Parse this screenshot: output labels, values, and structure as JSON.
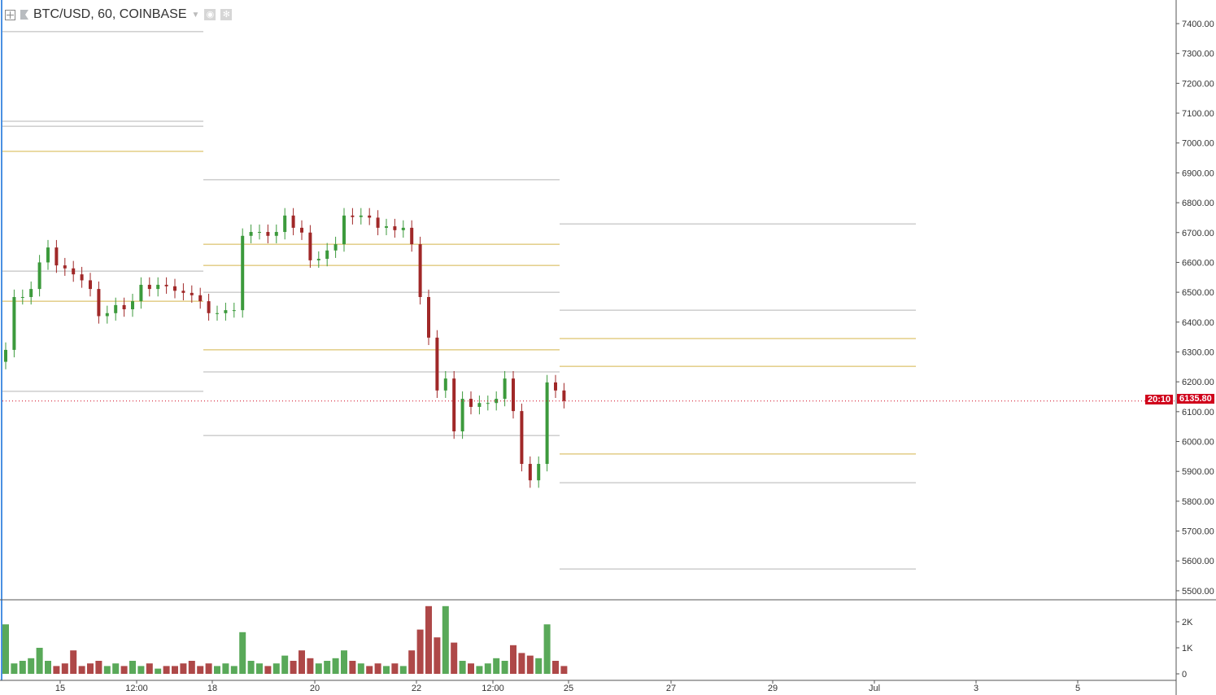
{
  "header": {
    "title": "BTC/USD, 60, COINBASE"
  },
  "colors": {
    "up": "#3c9a3c",
    "down": "#a02828",
    "pivot_gold": "#d4b44a",
    "pivot_gray": "#b4b4b4",
    "last_price": "#d0021b"
  },
  "last_price": {
    "value": "6135.80",
    "countdown": "20:10"
  },
  "chart_data": {
    "type": "candlestick",
    "symbol": "BTC/USD",
    "interval": "60",
    "exchange": "COINBASE",
    "ylim": [
      5450,
      7450
    ],
    "y_ticks": [
      "7400.00",
      "7300.00",
      "7200.00",
      "7100.00",
      "7000.00",
      "6900.00",
      "6800.00",
      "6700.00",
      "6600.00",
      "6500.00",
      "6400.00",
      "6300.00",
      "6200.00",
      "6100.00",
      "6000.00",
      "5900.00",
      "5800.00",
      "5700.00",
      "5600.00",
      "5500.00"
    ],
    "x_ticks": [
      "15",
      "12:00",
      "18",
      "20",
      "22",
      "12:00",
      "25",
      "27",
      "29",
      "Jul",
      "3",
      "5"
    ],
    "closes": [
      6307,
      6484,
      6484,
      6511,
      6600,
      6650,
      6590,
      6580,
      6560,
      6540,
      6511,
      6420,
      6430,
      6457,
      6443,
      6470,
      6525,
      6511,
      6525,
      6520,
      6505,
      6498,
      6490,
      6470,
      6430,
      6430,
      6440,
      6440,
      6689,
      6702,
      6702,
      6689,
      6702,
      6757,
      6716,
      6700,
      6607,
      6612,
      6640,
      6661,
      6757,
      6752,
      6757,
      6750,
      6716,
      6721,
      6708,
      6716,
      6661,
      6484,
      6348,
      6171,
      6211,
      6034,
      6143,
      6116,
      6129,
      6129,
      6143,
      6211,
      6102,
      5925,
      5870,
      5925,
      6198,
      6171,
      6135.8
    ],
    "volume": {
      "ticks": [
        "2K",
        "1K",
        "0"
      ],
      "values_k": [
        1.9,
        0.4,
        0.5,
        0.6,
        1.0,
        0.5,
        0.3,
        0.4,
        0.9,
        0.3,
        0.4,
        0.5,
        0.3,
        0.4,
        0.3,
        0.5,
        0.3,
        0.4,
        0.2,
        0.3,
        0.3,
        0.4,
        0.5,
        0.3,
        0.4,
        0.3,
        0.4,
        0.3,
        1.6,
        0.5,
        0.4,
        0.3,
        0.4,
        0.7,
        0.5,
        0.9,
        0.6,
        0.4,
        0.5,
        0.6,
        0.9,
        0.5,
        0.4,
        0.3,
        0.4,
        0.3,
        0.4,
        0.3,
        0.9,
        1.7,
        2.6,
        1.4,
        2.6,
        1.2,
        0.5,
        0.4,
        0.3,
        0.4,
        0.6,
        0.5,
        1.1,
        0.8,
        0.7,
        0.6,
        1.9,
        0.5,
        0.3
      ]
    },
    "pivot_levels": [
      {
        "period": 1,
        "levels": [
          [
            7373,
            "gray"
          ],
          [
            7073,
            "gray"
          ],
          [
            7056,
            "gray"
          ],
          [
            6972,
            "gold"
          ],
          [
            6571,
            "gray"
          ],
          [
            6470,
            "gold"
          ],
          [
            6168,
            "gray"
          ]
        ]
      },
      {
        "period": 2,
        "levels": [
          [
            6877,
            "gray"
          ],
          [
            6661,
            "gold"
          ],
          [
            6590,
            "gold"
          ],
          [
            6500,
            "gray"
          ],
          [
            6307,
            "gold"
          ],
          [
            6233,
            "gray"
          ],
          [
            6020,
            "gray"
          ]
        ]
      },
      {
        "period": 3,
        "levels": [
          [
            6729,
            "gray"
          ],
          [
            6440,
            "gray"
          ],
          [
            6345,
            "gold"
          ],
          [
            6252,
            "gold"
          ],
          [
            5958,
            "gold"
          ],
          [
            5862,
            "gray"
          ],
          [
            5573,
            "gray"
          ]
        ]
      }
    ]
  }
}
